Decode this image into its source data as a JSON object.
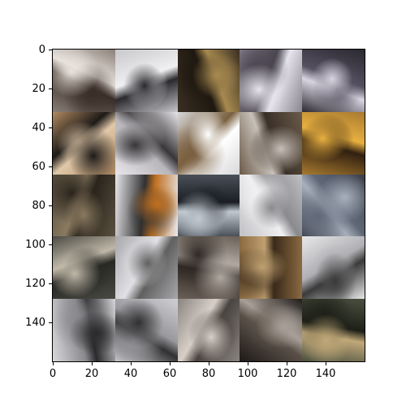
{
  "plot": {
    "x_ticks": [
      "0",
      "20",
      "40",
      "60",
      "80",
      "100",
      "120",
      "140"
    ],
    "y_ticks": [
      "0",
      "20",
      "40",
      "60",
      "80",
      "100",
      "120",
      "140"
    ],
    "x_tick_values": [
      0,
      20,
      40,
      60,
      80,
      100,
      120,
      140
    ],
    "y_tick_values": [
      0,
      20,
      40,
      60,
      80,
      100,
      120,
      140
    ],
    "extent": 160
  },
  "tiles": [
    {
      "c1": "#8a7f78",
      "c2": "#e8e2dc",
      "c3": "#3a2e28"
    },
    {
      "c1": "#c8c8cc",
      "c2": "#2a2a2e",
      "c3": "#f0f0f2"
    },
    {
      "c1": "#3a2f22",
      "c2": "#a88a50",
      "c3": "#1e1810"
    },
    {
      "c1": "#8a8590",
      "c2": "#e6e4ec",
      "c3": "#4a4550"
    },
    {
      "c1": "#2a2830",
      "c2": "#d8d4e0",
      "c3": "#555060"
    },
    {
      "c1": "#b08a60",
      "c2": "#1e1a18",
      "c3": "#e0c8a8"
    },
    {
      "c1": "#e8e6ea",
      "c2": "#383638",
      "c3": "#b8b6ba"
    },
    {
      "c1": "#d8d8da",
      "c2": "#ffffff",
      "c3": "#7a6040"
    },
    {
      "c1": "#6a5a4a",
      "c2": "#c8c0b8",
      "c3": "#3a3028"
    },
    {
      "c1": "#a87a30",
      "c2": "#e8b040",
      "c3": "#302010"
    },
    {
      "c1": "#5a5040",
      "c2": "#8a7a60",
      "c3": "#2a241c"
    },
    {
      "c1": "#e8e8ec",
      "c2": "#c07020",
      "c3": "#303030"
    },
    {
      "c1": "#4a5058",
      "c2": "#c0c8d0",
      "c3": "#1a1e24"
    },
    {
      "c1": "#c0c0c4",
      "c2": "#8a8a8e",
      "c3": "#f0f0f2"
    },
    {
      "c1": "#3a3e48",
      "c2": "#a8b0bc",
      "c3": "#606878"
    },
    {
      "c1": "#4a4a44",
      "c2": "#c0b8a8",
      "c3": "#282824"
    },
    {
      "c1": "#a8a8ac",
      "c2": "#606060",
      "c3": "#e0e0e4"
    },
    {
      "c1": "#6a6058",
      "c2": "#b0a8a0",
      "c3": "#302824"
    },
    {
      "c1": "#8a6a40",
      "c2": "#c0a070",
      "c3": "#3a2a1a"
    },
    {
      "c1": "#e8e8ea",
      "c2": "#3a3a3a",
      "c3": "#b0b0b4"
    },
    {
      "c1": "#d8d8dc",
      "c2": "#2a2a2c",
      "c3": "#8a8a8e"
    },
    {
      "c1": "#d0d0d4",
      "c2": "#303032",
      "c3": "#9a9a9e"
    },
    {
      "c1": "#8a8480",
      "c2": "#d8d0c8",
      "c3": "#4a4440"
    },
    {
      "c1": "#1e1a18",
      "c2": "#a8a098",
      "c3": "#5a5048"
    },
    {
      "c1": "#4a5040",
      "c2": "#c0a878",
      "c3": "#1e2018"
    }
  ]
}
